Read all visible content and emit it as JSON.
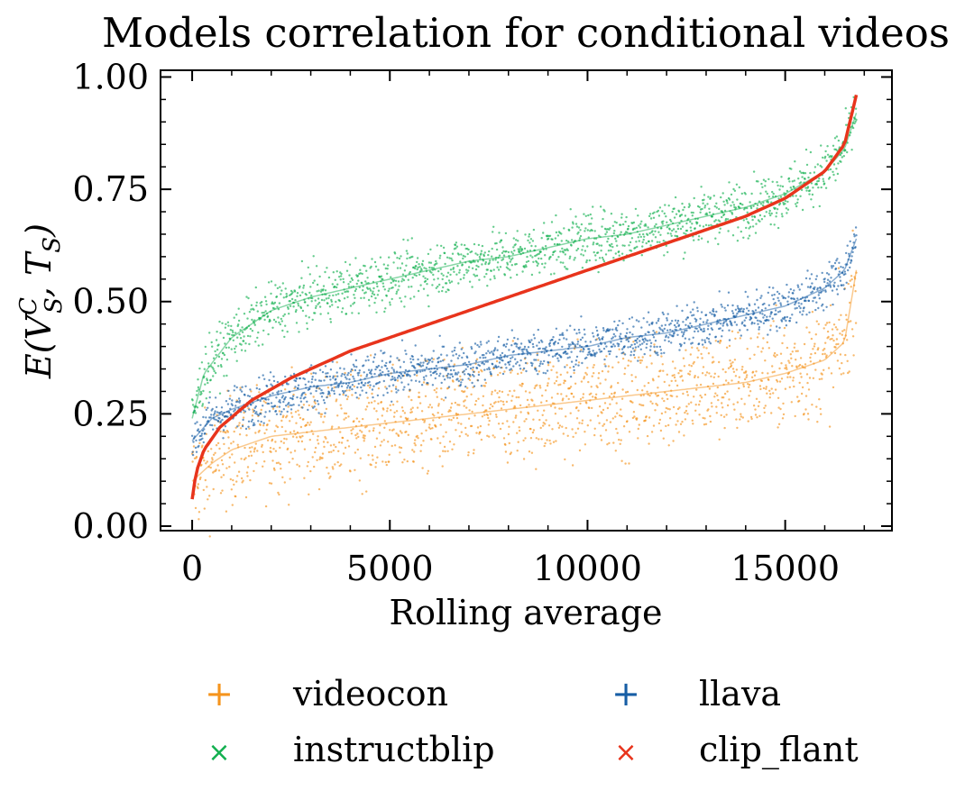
{
  "chart_data": {
    "type": "scatter",
    "title": "Models correlation for conditional videos",
    "xlabel": "Rolling average",
    "ylabel": "E(V",
    "ylabel_sup": "C",
    "ylabel_sub": "S",
    "ylabel_mid": ", T",
    "ylabel_sub2": "S",
    "ylabel_end": ")",
    "xlim": [
      -800,
      17700
    ],
    "ylim": [
      -0.01,
      1.015
    ],
    "xticks": [
      0,
      5000,
      10000,
      15000
    ],
    "xtick_labels": [
      "0",
      "5000",
      "10000",
      "15000"
    ],
    "yticks": [
      0.0,
      0.25,
      0.5,
      0.75,
      1.0
    ],
    "ytick_labels": [
      "0.00",
      "0.25",
      "0.50",
      "0.75",
      "1.00"
    ],
    "grid": false,
    "legend_position": "below",
    "series": [
      {
        "name": "videocon",
        "marker": "+",
        "color": "#f5941d",
        "x": [
          0,
          500,
          1000,
          2000,
          3000,
          4000,
          5000,
          6000,
          7000,
          8000,
          9000,
          10000,
          11000,
          12000,
          13000,
          14000,
          15000,
          16000,
          16500,
          16800
        ],
        "y": [
          0.1,
          0.14,
          0.17,
          0.2,
          0.21,
          0.22,
          0.23,
          0.24,
          0.25,
          0.26,
          0.27,
          0.28,
          0.29,
          0.3,
          0.31,
          0.32,
          0.34,
          0.37,
          0.41,
          0.57
        ],
        "spread": 0.06
      },
      {
        "name": "llava",
        "marker": "+",
        "color": "#175ea5",
        "x": [
          0,
          500,
          1000,
          2000,
          3000,
          4000,
          5000,
          6000,
          7000,
          8000,
          9000,
          10000,
          11000,
          12000,
          13000,
          14000,
          15000,
          16000,
          16500,
          16800
        ],
        "y": [
          0.19,
          0.24,
          0.26,
          0.29,
          0.31,
          0.32,
          0.34,
          0.35,
          0.36,
          0.38,
          0.39,
          0.4,
          0.42,
          0.43,
          0.45,
          0.47,
          0.49,
          0.53,
          0.57,
          0.64
        ],
        "spread": 0.025
      },
      {
        "name": "instructblip",
        "marker": "x",
        "color": "#13b050",
        "x": [
          0,
          300,
          1000,
          2000,
          3000,
          4000,
          5000,
          6000,
          7000,
          8000,
          9000,
          10000,
          11000,
          12000,
          13000,
          14000,
          15000,
          16000,
          16500,
          16800
        ],
        "y": [
          0.24,
          0.34,
          0.42,
          0.48,
          0.51,
          0.53,
          0.55,
          0.57,
          0.59,
          0.6,
          0.62,
          0.64,
          0.65,
          0.67,
          0.69,
          0.71,
          0.74,
          0.79,
          0.84,
          0.92
        ],
        "spread": 0.03
      },
      {
        "name": "clip_flant",
        "marker": "x",
        "color": "#e8341c",
        "x": [
          0,
          100,
          300,
          700,
          1500,
          2500,
          4000,
          6000,
          8000,
          10000,
          12000,
          14000,
          15000,
          16000,
          16500,
          16800
        ],
        "y": [
          0.06,
          0.12,
          0.17,
          0.22,
          0.28,
          0.33,
          0.39,
          0.45,
          0.51,
          0.57,
          0.63,
          0.69,
          0.73,
          0.79,
          0.85,
          0.96
        ],
        "spread": 0
      }
    ]
  }
}
